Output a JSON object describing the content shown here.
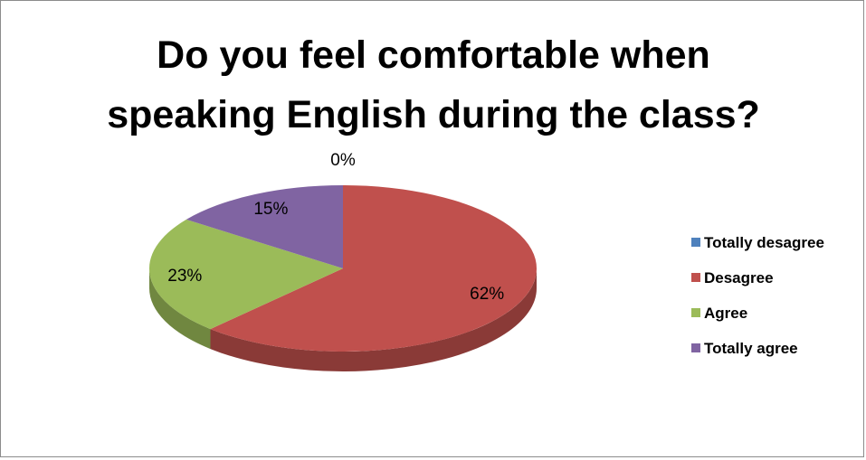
{
  "chart_data": {
    "type": "pie",
    "style": "3d",
    "title_lines": [
      "Do you feel comfortable when",
      "speaking English during the class?"
    ],
    "categories": [
      "Totally desagree",
      "Desagree",
      "Agree",
      "Totally agree"
    ],
    "values": [
      0,
      62,
      23,
      15
    ],
    "data_labels": [
      "0%",
      "62%",
      "23%",
      "15%"
    ],
    "colors": [
      "#4f81bd",
      "#c0504d",
      "#9bbb59",
      "#8064a2"
    ],
    "legend_position": "right"
  }
}
